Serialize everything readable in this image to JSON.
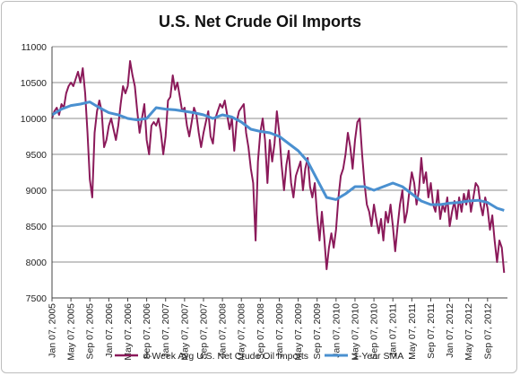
{
  "chart_data": {
    "type": "line",
    "title": "U.S. Net Crude Oil Imports",
    "xlabel": "",
    "ylabel": "",
    "ylim": [
      7500,
      11000
    ],
    "yticks": [
      7500,
      8000,
      8500,
      9000,
      9500,
      10000,
      10500,
      11000
    ],
    "xtick_labels": [
      "Jan 07, 2005",
      "May 07, 2005",
      "Sep 07, 2005",
      "Jan 07, 2006",
      "May 07, 2006",
      "Sep 07, 2006",
      "Jan 07, 2007",
      "May 07, 2007",
      "Sep 07, 2007",
      "Jan 07, 2008",
      "May 07, 2008",
      "Sep 07, 2008",
      "Jan 07, 2009",
      "May 07, 2009",
      "Sep 07, 2009",
      "Jan 07, 2010",
      "May 07, 2010",
      "Sep 07, 2010",
      "Jan 07, 2011",
      "May 07, 2011",
      "Sep 07, 2011",
      "Jan 07, 2012",
      "May 07, 2012",
      "Sep 07, 2012"
    ],
    "grid": true,
    "legend_position": "bottom",
    "x_unit": "months since Jan 2005",
    "series": [
      {
        "name": "4-Week Avg U.S. Net Crude Oil Imports",
        "color": "#8b1a5a",
        "points": [
          [
            0,
            10000
          ],
          [
            0.5,
            10100
          ],
          [
            1,
            10150
          ],
          [
            1.5,
            10050
          ],
          [
            2,
            10200
          ],
          [
            2.5,
            10150
          ],
          [
            3,
            10350
          ],
          [
            3.5,
            10450
          ],
          [
            4,
            10500
          ],
          [
            4.5,
            10450
          ],
          [
            5,
            10550
          ],
          [
            5.5,
            10650
          ],
          [
            6,
            10500
          ],
          [
            6.5,
            10700
          ],
          [
            7,
            10350
          ],
          [
            7.5,
            9800
          ],
          [
            8,
            9150
          ],
          [
            8.5,
            8900
          ],
          [
            9,
            9800
          ],
          [
            9.5,
            10100
          ],
          [
            10,
            10250
          ],
          [
            10.5,
            10100
          ],
          [
            11,
            9600
          ],
          [
            11.5,
            9700
          ],
          [
            12,
            9900
          ],
          [
            12.5,
            10000
          ],
          [
            13,
            9850
          ],
          [
            13.5,
            9700
          ],
          [
            14,
            9900
          ],
          [
            14.5,
            10200
          ],
          [
            15,
            10450
          ],
          [
            15.5,
            10350
          ],
          [
            16,
            10450
          ],
          [
            16.5,
            10800
          ],
          [
            17,
            10600
          ],
          [
            17.5,
            10450
          ],
          [
            18,
            10100
          ],
          [
            18.5,
            9800
          ],
          [
            19,
            10000
          ],
          [
            19.5,
            10200
          ],
          [
            20,
            9700
          ],
          [
            20.5,
            9500
          ],
          [
            21,
            9900
          ],
          [
            21.5,
            9950
          ],
          [
            22,
            9900
          ],
          [
            22.5,
            10000
          ],
          [
            23,
            9800
          ],
          [
            23.5,
            9500
          ],
          [
            24,
            9750
          ],
          [
            24.5,
            10250
          ],
          [
            25,
            10300
          ],
          [
            25.5,
            10600
          ],
          [
            26,
            10400
          ],
          [
            26.5,
            10500
          ],
          [
            27,
            10300
          ],
          [
            27.5,
            10100
          ],
          [
            28,
            10150
          ],
          [
            28.5,
            9900
          ],
          [
            29,
            9750
          ],
          [
            29.5,
            9950
          ],
          [
            30,
            10150
          ],
          [
            30.5,
            10050
          ],
          [
            31,
            9800
          ],
          [
            31.5,
            9600
          ],
          [
            32,
            9800
          ],
          [
            32.5,
            9950
          ],
          [
            33,
            10100
          ],
          [
            33.5,
            9750
          ],
          [
            34,
            9650
          ],
          [
            34.5,
            10000
          ],
          [
            35,
            10100
          ],
          [
            35.5,
            10200
          ],
          [
            36,
            10150
          ],
          [
            36.5,
            10250
          ],
          [
            37,
            10050
          ],
          [
            37.5,
            9850
          ],
          [
            38,
            10000
          ],
          [
            38.5,
            9550
          ],
          [
            39,
            9950
          ],
          [
            39.5,
            10100
          ],
          [
            40,
            10150
          ],
          [
            40.5,
            10200
          ],
          [
            41,
            9800
          ],
          [
            41.5,
            9600
          ],
          [
            42,
            9300
          ],
          [
            42.5,
            9100
          ],
          [
            43,
            8300
          ],
          [
            43.5,
            9400
          ],
          [
            44,
            9800
          ],
          [
            44.5,
            10000
          ],
          [
            45,
            9700
          ],
          [
            45.5,
            9100
          ],
          [
            46,
            9700
          ],
          [
            46.5,
            9400
          ],
          [
            47,
            9650
          ],
          [
            47.5,
            10100
          ],
          [
            48,
            9800
          ],
          [
            48.5,
            9350
          ],
          [
            49,
            9000
          ],
          [
            49.5,
            9350
          ],
          [
            50,
            9550
          ],
          [
            50.5,
            9100
          ],
          [
            51,
            8900
          ],
          [
            51.5,
            9200
          ],
          [
            52,
            9300
          ],
          [
            52.5,
            9400
          ],
          [
            53,
            9000
          ],
          [
            53.5,
            9300
          ],
          [
            54,
            9450
          ],
          [
            54.5,
            9050
          ],
          [
            55,
            8900
          ],
          [
            55.5,
            9100
          ],
          [
            56,
            8650
          ],
          [
            56.5,
            8300
          ],
          [
            57,
            8700
          ],
          [
            57.5,
            8350
          ],
          [
            58,
            7900
          ],
          [
            58.5,
            8200
          ],
          [
            59,
            8400
          ],
          [
            59.5,
            8200
          ],
          [
            60,
            8450
          ],
          [
            60.5,
            8900
          ],
          [
            61,
            9200
          ],
          [
            61.5,
            9300
          ],
          [
            62,
            9500
          ],
          [
            62.5,
            9800
          ],
          [
            63,
            9600
          ],
          [
            63.5,
            9300
          ],
          [
            64,
            9700
          ],
          [
            64.5,
            9950
          ],
          [
            65,
            10000
          ],
          [
            65.5,
            9500
          ],
          [
            66,
            9100
          ],
          [
            66.5,
            8800
          ],
          [
            67,
            8700
          ],
          [
            67.5,
            8500
          ],
          [
            68,
            8800
          ],
          [
            68.5,
            8600
          ],
          [
            69,
            8400
          ],
          [
            69.5,
            8600
          ],
          [
            70,
            8300
          ],
          [
            70.5,
            8700
          ],
          [
            71,
            8550
          ],
          [
            71.5,
            8800
          ],
          [
            72,
            8500
          ],
          [
            72.5,
            8150
          ],
          [
            73,
            8500
          ],
          [
            73.5,
            8800
          ],
          [
            74,
            9000
          ],
          [
            74.5,
            8550
          ],
          [
            75,
            8700
          ],
          [
            75.5,
            9000
          ],
          [
            76,
            9250
          ],
          [
            76.5,
            9100
          ],
          [
            77,
            8800
          ],
          [
            77.5,
            9000
          ],
          [
            78,
            9450
          ],
          [
            78.5,
            9100
          ],
          [
            79,
            9250
          ],
          [
            79.5,
            8900
          ],
          [
            80,
            9100
          ],
          [
            80.5,
            8800
          ],
          [
            81,
            8700
          ],
          [
            81.5,
            9000
          ],
          [
            82,
            8600
          ],
          [
            82.5,
            8800
          ],
          [
            83,
            8700
          ],
          [
            83.5,
            8900
          ],
          [
            84,
            8500
          ],
          [
            84.5,
            8700
          ],
          [
            85,
            8850
          ],
          [
            85.5,
            8600
          ],
          [
            86,
            8900
          ],
          [
            86.5,
            8700
          ],
          [
            87,
            8950
          ],
          [
            87.5,
            8800
          ],
          [
            88,
            9000
          ],
          [
            88.5,
            8700
          ],
          [
            89,
            8900
          ],
          [
            89.5,
            9100
          ],
          [
            90,
            9050
          ],
          [
            90.5,
            8800
          ],
          [
            91,
            8650
          ],
          [
            91.5,
            8900
          ],
          [
            92,
            8750
          ],
          [
            92.5,
            8450
          ],
          [
            93,
            8650
          ],
          [
            93.5,
            8300
          ],
          [
            94,
            8000
          ],
          [
            94.5,
            8300
          ],
          [
            95,
            8200
          ],
          [
            95.5,
            7850
          ]
        ]
      },
      {
        "name": "1-Year SMA",
        "color": "#4a90d0",
        "points": [
          [
            0,
            10050
          ],
          [
            2,
            10130
          ],
          [
            4,
            10180
          ],
          [
            6,
            10200
          ],
          [
            8,
            10230
          ],
          [
            10,
            10150
          ],
          [
            12,
            10080
          ],
          [
            14,
            10050
          ],
          [
            16,
            10000
          ],
          [
            18,
            9980
          ],
          [
            20,
            10000
          ],
          [
            22,
            10150
          ],
          [
            24,
            10130
          ],
          [
            26,
            10120
          ],
          [
            28,
            10100
          ],
          [
            30,
            10080
          ],
          [
            32,
            10050
          ],
          [
            34,
            10000
          ],
          [
            36,
            10050
          ],
          [
            38,
            10020
          ],
          [
            40,
            9950
          ],
          [
            42,
            9850
          ],
          [
            44,
            9820
          ],
          [
            46,
            9800
          ],
          [
            48,
            9750
          ],
          [
            50,
            9650
          ],
          [
            52,
            9550
          ],
          [
            54,
            9400
          ],
          [
            56,
            9150
          ],
          [
            58,
            8900
          ],
          [
            60,
            8870
          ],
          [
            62,
            8950
          ],
          [
            64,
            9050
          ],
          [
            66,
            9050
          ],
          [
            68,
            9000
          ],
          [
            70,
            9050
          ],
          [
            72,
            9100
          ],
          [
            74,
            9050
          ],
          [
            76,
            8950
          ],
          [
            78,
            8850
          ],
          [
            80,
            8800
          ],
          [
            82,
            8800
          ],
          [
            84,
            8820
          ],
          [
            86,
            8830
          ],
          [
            88,
            8850
          ],
          [
            90,
            8860
          ],
          [
            92,
            8830
          ],
          [
            94,
            8750
          ],
          [
            95.5,
            8720
          ]
        ]
      }
    ]
  }
}
